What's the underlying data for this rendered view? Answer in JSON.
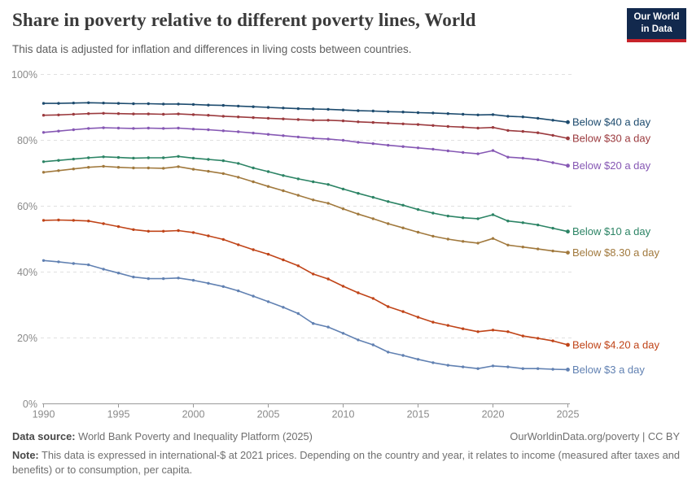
{
  "header": {
    "title": "Share in poverty relative to different poverty lines, World",
    "subtitle": "This data is adjusted for inflation and differences in living costs between countries.",
    "logo": {
      "line1": "Our World",
      "line2": "in Data",
      "bg_color": "#12294d",
      "stripe_color": "#c7232a"
    }
  },
  "chart_data": {
    "type": "line",
    "title": "Share in poverty relative to different poverty lines, World",
    "x": [
      1990,
      1991,
      1992,
      1993,
      1994,
      1995,
      1996,
      1997,
      1998,
      1999,
      2000,
      2001,
      2002,
      2003,
      2004,
      2005,
      2006,
      2007,
      2008,
      2009,
      2010,
      2011,
      2012,
      2013,
      2014,
      2015,
      2016,
      2017,
      2018,
      2019,
      2020,
      2021,
      2022,
      2023,
      2024,
      2025
    ],
    "x_ticks": [
      1990,
      1995,
      2000,
      2005,
      2010,
      2015,
      2020,
      2025
    ],
    "y_ticks": [
      0,
      20,
      40,
      60,
      80,
      100
    ],
    "y_tick_suffix": "%",
    "ylim": [
      0,
      100
    ],
    "grid": "horizontal-dashed",
    "legend_position": "right-of-line-end",
    "marker": "dot-every-year",
    "series": [
      {
        "name": "Below $40 a day",
        "color": "#1d4b6e",
        "values": [
          91.2,
          91.2,
          91.3,
          91.4,
          91.3,
          91.2,
          91.1,
          91.1,
          91.0,
          91.0,
          90.9,
          90.7,
          90.6,
          90.4,
          90.2,
          90.0,
          89.8,
          89.6,
          89.5,
          89.4,
          89.2,
          89.0,
          88.9,
          88.7,
          88.6,
          88.4,
          88.3,
          88.1,
          87.9,
          87.7,
          87.8,
          87.3,
          87.1,
          86.7,
          86.1,
          85.5
        ]
      },
      {
        "name": "Below $30 a day",
        "color": "#9b3a3e",
        "values": [
          87.6,
          87.7,
          87.9,
          88.1,
          88.2,
          88.1,
          88.0,
          88.0,
          87.9,
          88.0,
          87.8,
          87.6,
          87.3,
          87.1,
          86.9,
          86.7,
          86.5,
          86.3,
          86.1,
          86.1,
          85.9,
          85.6,
          85.4,
          85.2,
          85.0,
          84.8,
          84.5,
          84.2,
          84.0,
          83.7,
          83.9,
          83.0,
          82.7,
          82.3,
          81.5,
          80.6
        ]
      },
      {
        "name": "Below $20 a day",
        "color": "#8658b4",
        "values": [
          82.4,
          82.8,
          83.2,
          83.6,
          83.8,
          83.7,
          83.6,
          83.7,
          83.6,
          83.7,
          83.4,
          83.2,
          82.9,
          82.6,
          82.2,
          81.8,
          81.4,
          81.0,
          80.6,
          80.4,
          80.0,
          79.4,
          79.0,
          78.5,
          78.1,
          77.7,
          77.3,
          76.8,
          76.3,
          75.9,
          76.9,
          74.9,
          74.6,
          74.1,
          73.2,
          72.3
        ]
      },
      {
        "name": "Below $10 a day",
        "color": "#2c8465",
        "values": [
          73.5,
          73.9,
          74.3,
          74.7,
          75.0,
          74.8,
          74.6,
          74.7,
          74.7,
          75.1,
          74.6,
          74.2,
          73.8,
          73.0,
          71.6,
          70.5,
          69.3,
          68.3,
          67.4,
          66.6,
          65.2,
          63.9,
          62.7,
          61.4,
          60.3,
          59.0,
          57.9,
          57.0,
          56.5,
          56.2,
          57.4,
          55.5,
          55.0,
          54.3,
          53.3,
          52.3
        ]
      },
      {
        "name": "Below $8.30 a day",
        "color": "#a1793d",
        "values": [
          70.3,
          70.8,
          71.3,
          71.8,
          72.1,
          71.8,
          71.6,
          71.6,
          71.5,
          72.0,
          71.2,
          70.6,
          69.9,
          68.8,
          67.4,
          66.0,
          64.7,
          63.3,
          61.9,
          60.9,
          59.2,
          57.6,
          56.2,
          54.7,
          53.4,
          52.1,
          50.9,
          50.0,
          49.3,
          48.8,
          50.2,
          48.2,
          47.6,
          47.0,
          46.4,
          45.9
        ]
      },
      {
        "name": "Below $4.20 a day",
        "color": "#c04418",
        "values": [
          55.7,
          55.8,
          55.7,
          55.5,
          54.7,
          53.8,
          52.9,
          52.4,
          52.4,
          52.6,
          52.0,
          51.0,
          49.9,
          48.3,
          46.8,
          45.4,
          43.7,
          41.9,
          39.4,
          37.9,
          35.7,
          33.7,
          32.0,
          29.5,
          28.0,
          26.3,
          24.8,
          23.8,
          22.8,
          21.9,
          22.4,
          21.9,
          20.6,
          19.9,
          19.1,
          17.9
        ]
      },
      {
        "name": "Below $3 a day",
        "color": "#6181b2",
        "values": [
          43.5,
          43.1,
          42.6,
          42.2,
          40.9,
          39.7,
          38.5,
          38.0,
          38.0,
          38.2,
          37.5,
          36.6,
          35.6,
          34.3,
          32.7,
          31.0,
          29.3,
          27.4,
          24.4,
          23.3,
          21.4,
          19.4,
          17.9,
          15.7,
          14.7,
          13.5,
          12.5,
          11.7,
          11.2,
          10.7,
          11.5,
          11.2,
          10.7,
          10.7,
          10.5,
          10.4
        ]
      }
    ]
  },
  "footer": {
    "source_label": "Data source:",
    "source_text": "World Bank Poverty and Inequality Platform (2025)",
    "attribution": "OurWorldinData.org/poverty | CC BY",
    "note_label": "Note:",
    "note_text": "This data is expressed in international-$ at 2021 prices. Depending on the country and year, it relates to income (measured after taxes and benefits) or to consumption, per capita."
  }
}
